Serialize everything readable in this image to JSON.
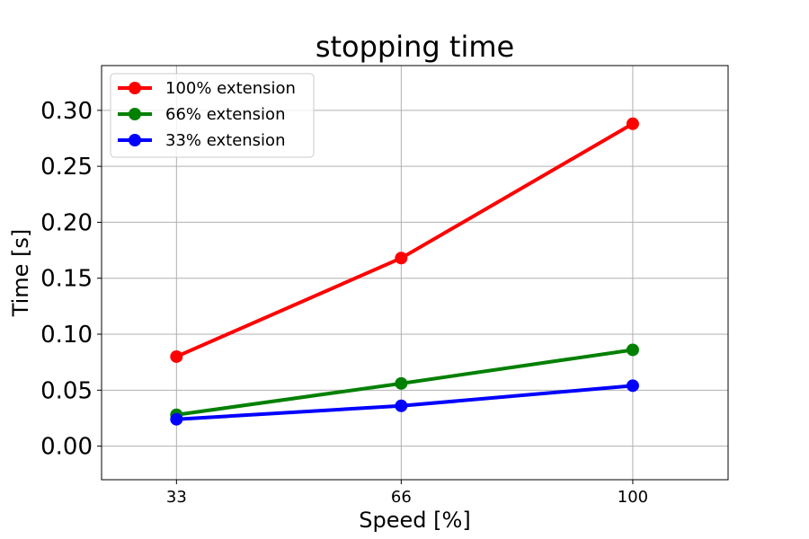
{
  "chart_data": {
    "type": "line",
    "title": "stopping time",
    "xlabel": "Speed [%]",
    "ylabel": "Time [s]",
    "x": [
      33,
      66,
      100
    ],
    "xticks": [
      "33",
      "66",
      "100"
    ],
    "xlim": [
      22,
      114
    ],
    "ylim": [
      -0.03,
      0.34
    ],
    "yticks": [
      "0.00",
      "0.05",
      "0.10",
      "0.15",
      "0.20",
      "0.25",
      "0.30"
    ],
    "grid": true,
    "legend_position": "top-left",
    "series": [
      {
        "name": "100% extension",
        "color": "#ff0000",
        "values": [
          0.08,
          0.168,
          0.288
        ]
      },
      {
        "name": "66% extension",
        "color": "#008000",
        "values": [
          0.028,
          0.056,
          0.086
        ]
      },
      {
        "name": "33% extension",
        "color": "#0000ff",
        "values": [
          0.024,
          0.036,
          0.054
        ]
      }
    ]
  }
}
